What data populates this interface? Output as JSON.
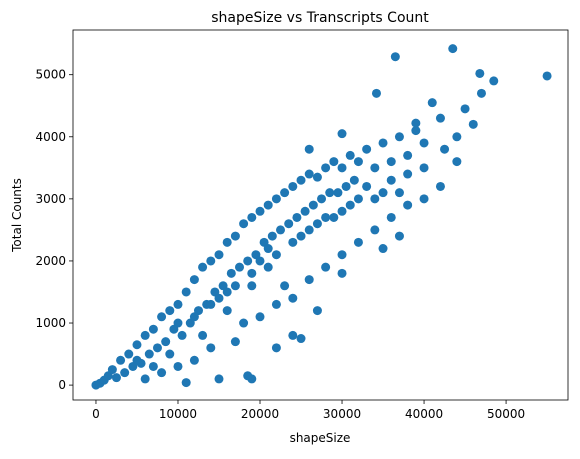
{
  "chart_data": {
    "type": "scatter",
    "title": "shapeSize vs Transcripts Count",
    "x_label": "shapeSize",
    "y_label": "Total Counts",
    "color": "#1f77b4",
    "x": [
      0,
      500,
      1000,
      1500,
      2000,
      2500,
      3000,
      3500,
      4000,
      4500,
      5000,
      5500,
      6000,
      6500,
      7000,
      7500,
      8000,
      8500,
      9000,
      9500,
      10000,
      10500,
      11000,
      11500,
      12000,
      12500,
      13000,
      13500,
      14000,
      14500,
      15000,
      15500,
      16000,
      16500,
      17000,
      17500,
      18000,
      18500,
      19000,
      19500,
      20000,
      20500,
      21000,
      21500,
      22000,
      22500,
      23000,
      23500,
      24000,
      24500,
      25000,
      25500,
      26000,
      26500,
      27000,
      27500,
      28000,
      28500,
      29000,
      29500,
      30000,
      30500,
      31000,
      31500,
      32000,
      33000,
      34000,
      35000,
      36000,
      37000,
      38000,
      39000,
      40000,
      42000,
      44000,
      46000,
      6000,
      8000,
      10000,
      12000,
      14000,
      15000,
      17000,
      18000,
      20000,
      22000,
      24000,
      25000,
      26000,
      27000,
      28000,
      30000,
      32000,
      34000,
      36000,
      38000,
      40000,
      42000,
      11000,
      19000,
      18500,
      22000,
      24000,
      30000,
      35000,
      37000,
      23000,
      21000,
      19000,
      16000,
      13000,
      9000,
      7000,
      5000,
      10000,
      15000,
      20000,
      25000,
      30000,
      35000,
      12000,
      17000,
      22000,
      27000,
      32000,
      14000,
      19000,
      24000,
      29000,
      34000,
      16000,
      21000,
      26000,
      28000,
      31000,
      33000,
      36000,
      38000,
      40000,
      55000,
      43500,
      36500,
      46800,
      48500,
      34200,
      47000,
      41000,
      39000,
      45000,
      42500,
      37000,
      44000,
      30000,
      26000
    ],
    "values": [
      0,
      30,
      80,
      150,
      250,
      120,
      400,
      200,
      500,
      300,
      650,
      350,
      800,
      500,
      900,
      600,
      1100,
      700,
      1200,
      900,
      1300,
      800,
      1500,
      1000,
      1700,
      1200,
      1900,
      1300,
      2000,
      1500,
      2100,
      1600,
      2300,
      1800,
      2400,
      1900,
      2600,
      2000,
      2700,
      2100,
      2800,
      2300,
      2900,
      2400,
      3000,
      2500,
      3100,
      2600,
      3200,
      2700,
      3300,
      2800,
      3400,
      2900,
      3350,
      3000,
      3500,
      3100,
      3600,
      3100,
      3500,
      3200,
      3700,
      3300,
      3600,
      3800,
      3500,
      3900,
      3600,
      4000,
      3700,
      4100,
      3900,
      4300,
      4000,
      4200,
      100,
      200,
      300,
      400,
      600,
      100,
      700,
      1000,
      1100,
      1300,
      1400,
      750,
      1700,
      1200,
      1900,
      2100,
      2300,
      2500,
      2700,
      2900,
      3000,
      3200,
      40,
      100,
      150,
      600,
      800,
      1800,
      2200,
      2400,
      1600,
      1900,
      1600,
      1200,
      800,
      500,
      300,
      400,
      1000,
      1400,
      2000,
      2400,
      2800,
      3100,
      1100,
      1600,
      2100,
      2600,
      3000,
      1300,
      1800,
      2300,
      2700,
      3000,
      1500,
      2200,
      2500,
      2700,
      2900,
      3200,
      3300,
      3400,
      3500,
      4980,
      5420,
      5290,
      5020,
      4900,
      4700,
      4700,
      4550,
      4220,
      4450,
      3800,
      3100,
      3600,
      4050,
      3800
    ],
    "xlim": [
      -2800,
      57550
    ],
    "ylim": [
      -240,
      5720
    ],
    "xticks": [
      0,
      10000,
      20000,
      30000,
      40000,
      50000
    ],
    "yticks": [
      0,
      1000,
      2000,
      3000,
      4000,
      5000
    ]
  }
}
